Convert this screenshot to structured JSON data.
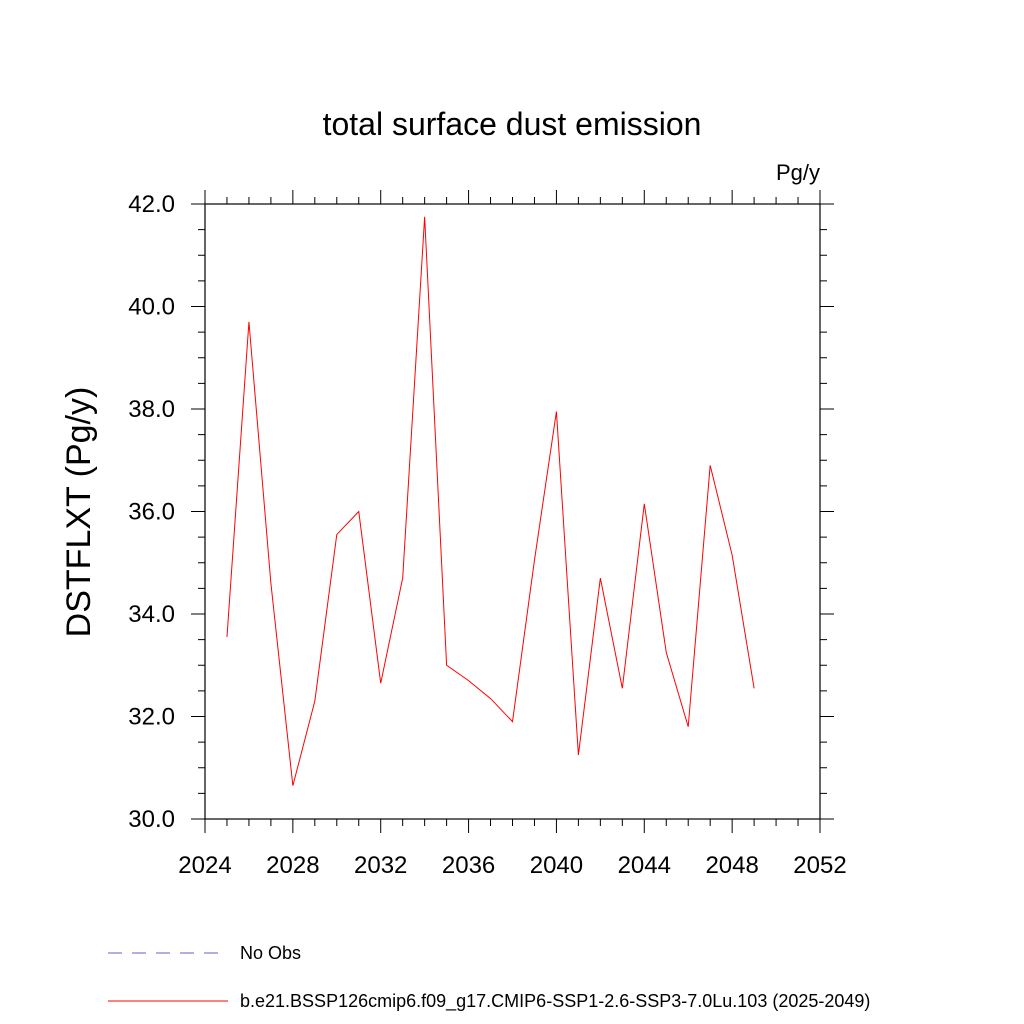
{
  "chart_data": {
    "type": "line",
    "title": "total surface dust emission",
    "units": "Pg/y",
    "ylabel": "DSTFLXT  (Pg/y)",
    "xlabel": "",
    "xlim": [
      2024,
      2052
    ],
    "ylim": [
      30.0,
      42.0
    ],
    "x_ticks": [
      "2024",
      "2028",
      "2032",
      "2036",
      "2040",
      "2044",
      "2048",
      "2052"
    ],
    "y_ticks": [
      "30.0",
      "32.0",
      "34.0",
      "36.0",
      "38.0",
      "40.0",
      "42.0"
    ],
    "grid": false,
    "legend_position": "bottom",
    "series": [
      {
        "name": "b.e21.BSSP126cmip6.f09_g17.CMIP6-SSP1-2.6-SSP3-7.0Lu.103 (2025-2049)",
        "color": "#ff0000",
        "style": "solid",
        "x": [
          2025,
          2026,
          2027,
          2028,
          2029,
          2030,
          2031,
          2032,
          2033,
          2034,
          2035,
          2036,
          2037,
          2038,
          2039,
          2040,
          2041,
          2042,
          2043,
          2044,
          2045,
          2046,
          2047,
          2048,
          2049
        ],
        "y": [
          33.55,
          39.7,
          34.6,
          30.65,
          32.3,
          35.55,
          36.0,
          32.65,
          34.7,
          41.75,
          33.0,
          32.7,
          32.35,
          31.9,
          35.05,
          37.95,
          31.25,
          34.7,
          32.55,
          36.15,
          33.25,
          31.8,
          36.9,
          35.15,
          32.55
        ]
      }
    ],
    "legend": [
      {
        "label": "No Obs",
        "color": "#6a5acd",
        "style": "dashed"
      },
      {
        "label": "b.e21.BSSP126cmip6.f09_g17.CMIP6-SSP1-2.6-SSP3-7.0Lu.103 (2025-2049)",
        "color": "#ff0000",
        "style": "solid"
      }
    ]
  }
}
